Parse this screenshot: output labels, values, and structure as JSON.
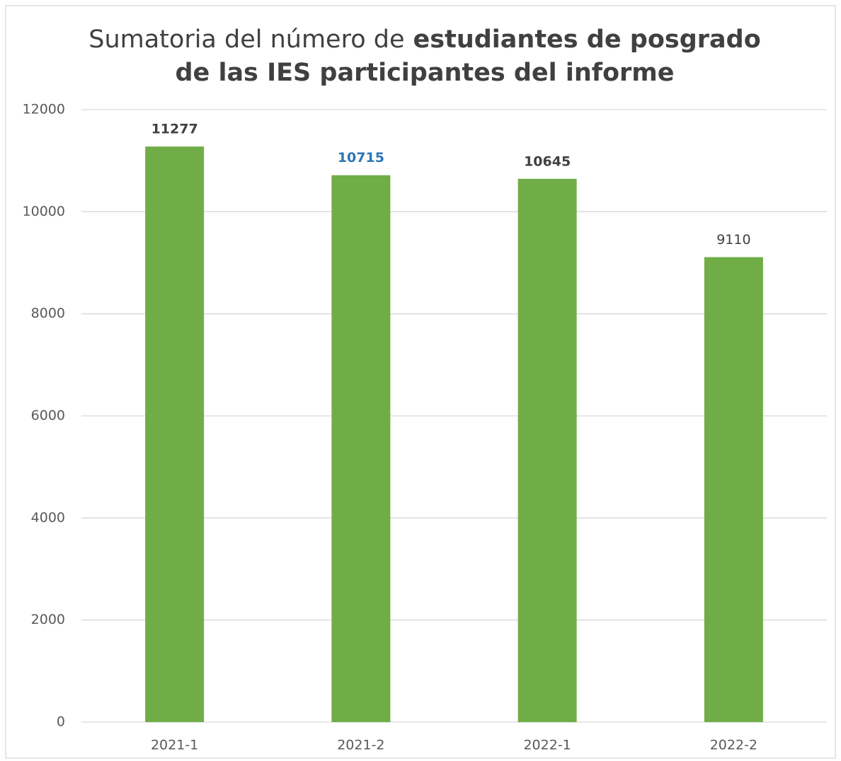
{
  "chart_data": {
    "type": "bar",
    "title_lines": [
      [
        {
          "text": "Sumatoria del número de",
          "bold": false
        },
        {
          "text": "estudiantes de posgrado",
          "bold": true
        }
      ],
      [
        {
          "text": "de las IES participantes del informe",
          "bold": true
        }
      ]
    ],
    "categories": [
      "2021-1",
      "2021-2",
      "2022-1",
      "2022-2"
    ],
    "values": [
      11277,
      10715,
      10645,
      9110
    ],
    "value_label_styles": [
      {
        "color": "#404040",
        "bold": true
      },
      {
        "color": "#2e75b6",
        "bold": true
      },
      {
        "color": "#404040",
        "bold": true
      },
      {
        "color": "#404040",
        "bold": false
      }
    ],
    "color": "#70ad47",
    "ylim": [
      0,
      12000
    ],
    "yticks": [
      0,
      2000,
      4000,
      6000,
      8000,
      10000,
      12000
    ],
    "grid": true
  }
}
